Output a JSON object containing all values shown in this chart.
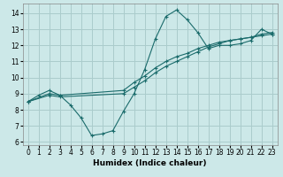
{
  "xlabel": "Humidex (Indice chaleur)",
  "bg_color": "#cce8e8",
  "grid_color": "#aacccc",
  "line_color": "#1a6b6b",
  "xlim": [
    -0.5,
    23.5
  ],
  "ylim": [
    5.8,
    14.6
  ],
  "yticks": [
    6,
    7,
    8,
    9,
    10,
    11,
    12,
    13,
    14
  ],
  "xticks": [
    0,
    1,
    2,
    3,
    4,
    5,
    6,
    7,
    8,
    9,
    10,
    11,
    12,
    13,
    14,
    15,
    16,
    17,
    18,
    19,
    20,
    21,
    22,
    23
  ],
  "line1_x": [
    0,
    1,
    2,
    3,
    4,
    5,
    6,
    7,
    8,
    9,
    10,
    11,
    12,
    13,
    14,
    15,
    16,
    17,
    18,
    19,
    20,
    21,
    22,
    23
  ],
  "line1_y": [
    8.5,
    8.9,
    9.2,
    8.9,
    8.3,
    7.5,
    6.4,
    6.5,
    6.7,
    7.9,
    9.0,
    10.5,
    12.4,
    13.8,
    14.2,
    13.6,
    12.8,
    11.8,
    12.0,
    12.0,
    12.1,
    12.3,
    13.0,
    12.7
  ],
  "line2_x": [
    0,
    2,
    3,
    9,
    10,
    11,
    12,
    13,
    14,
    15,
    16,
    17,
    18,
    19,
    20,
    21,
    22,
    23
  ],
  "line2_y": [
    8.5,
    9.0,
    8.9,
    9.2,
    9.7,
    10.1,
    10.6,
    11.0,
    11.3,
    11.5,
    11.8,
    12.0,
    12.2,
    12.3,
    12.4,
    12.5,
    12.7,
    12.8
  ],
  "line3_x": [
    0,
    2,
    3,
    9,
    10,
    11,
    12,
    13,
    14,
    15,
    16,
    17,
    18,
    19,
    20,
    21,
    22,
    23
  ],
  "line3_y": [
    8.5,
    8.9,
    8.8,
    9.0,
    9.4,
    9.8,
    10.3,
    10.7,
    11.0,
    11.3,
    11.6,
    11.9,
    12.1,
    12.3,
    12.4,
    12.5,
    12.6,
    12.7
  ]
}
